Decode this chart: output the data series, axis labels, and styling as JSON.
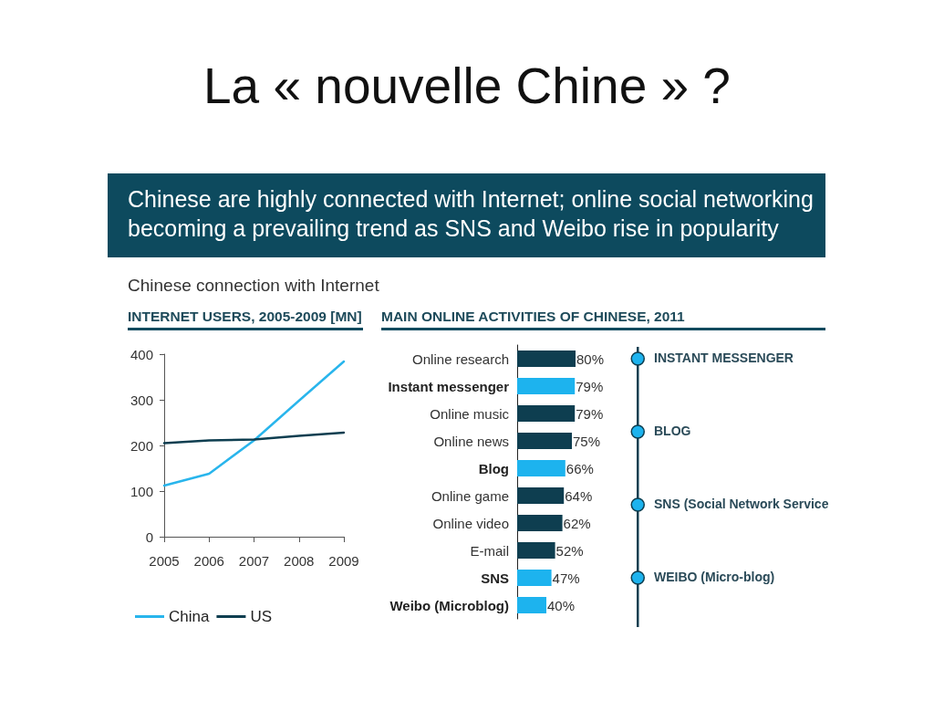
{
  "chart_data": [
    {
      "type": "other",
      "title": "La « nouvelle Chine » ?",
      "subtitle": "Chinese are highly connected with Internet; online social networking becoming a prevailing trend as SNS and Weibo rise in popularity",
      "annotations": [
        "Chinese connection with Internet"
      ]
    },
    {
      "type": "line",
      "title": "INTERNET USERS, 2005-2009 [MN]",
      "categories": [
        "2005",
        "2006",
        "2007",
        "2008",
        "2009"
      ],
      "series": [
        {
          "name": "China",
          "color": "#29b5ec",
          "values": [
            112,
            138,
            211,
            298,
            384
          ]
        },
        {
          "name": "US",
          "color": "#0e3e50",
          "values": [
            205,
            211,
            213,
            221,
            228
          ]
        }
      ],
      "ylim": [
        0,
        400
      ],
      "yticks": [
        0,
        100,
        200,
        300,
        400
      ],
      "legend": "bottom left",
      "marker": "none"
    },
    {
      "type": "bar",
      "title": "MAIN ONLINE ACTIVITIES OF CHINESE, 2011",
      "orientation": "horizontal",
      "categories": [
        "Online research",
        "Instant messenger",
        "Online music",
        "Online news",
        "Blog",
        "Online game",
        "Online video",
        "E-mail",
        "SNS",
        "Weibo (Microblog)"
      ],
      "values": [
        80,
        79,
        79,
        75,
        66,
        64,
        62,
        52,
        47,
        40
      ],
      "colors": [
        "#0e3e50",
        "#1db3ee",
        "#0e3e50",
        "#0e3e50",
        "#1db3ee",
        "#0e3e50",
        "#0e3e50",
        "#0e3e50",
        "#1db3ee",
        "#1db3ee"
      ],
      "value_labels": [
        "80%",
        "79%",
        "79%",
        "75%",
        "66%",
        "64%",
        "62%",
        "52%",
        "47%",
        "40%"
      ]
    },
    {
      "type": "other",
      "annotations": [
        "INSTANT MESSENGER",
        "BLOG",
        "SNS (Social Network Service",
        "WEIBO (Micro-blog)"
      ]
    }
  ]
}
